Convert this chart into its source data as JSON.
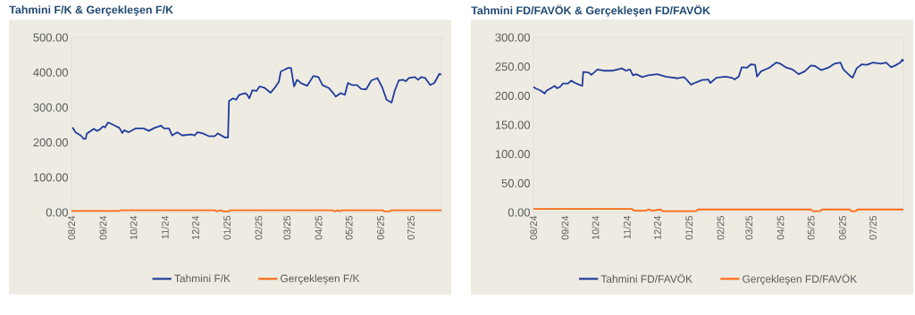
{
  "chart_data": [
    {
      "type": "line",
      "title": "Tahmini F/K & Gerçekleşen F/K",
      "legend": "bottom",
      "xlim": [
        "2024-08-01",
        "2025-07-31"
      ],
      "xticks": [
        {
          "value": "2024-08-01",
          "label": "08/24"
        },
        {
          "value": "2024-09-01",
          "label": "09/24"
        },
        {
          "value": "2024-10-01",
          "label": "10/24"
        },
        {
          "value": "2024-11-01",
          "label": "11/24"
        },
        {
          "value": "2024-12-01",
          "label": "12/24"
        },
        {
          "value": "2025-01-01",
          "label": "01/25"
        },
        {
          "value": "2025-02-01",
          "label": "02/25"
        },
        {
          "value": "2025-03-01",
          "label": "03/25"
        },
        {
          "value": "2025-04-01",
          "label": "04/25"
        },
        {
          "value": "2025-05-01",
          "label": "05/25"
        },
        {
          "value": "2025-06-01",
          "label": "06/25"
        },
        {
          "value": "2025-07-01",
          "label": "07/25"
        }
      ],
      "ylim": [
        0,
        500
      ],
      "yticks": [
        {
          "value": 0,
          "label": "0.00"
        },
        {
          "value": 100,
          "label": "100.00"
        },
        {
          "value": 200,
          "label": "200.00"
        },
        {
          "value": 300,
          "label": "300.00"
        },
        {
          "value": 400,
          "label": "400.00"
        },
        {
          "value": 500,
          "label": "500.00"
        }
      ],
      "series": [
        {
          "name": "Tahmini F/K",
          "color": "#1f3c9c",
          "x": [
            "2024-08-02",
            "2024-08-05",
            "2024-08-10",
            "2024-08-13",
            "2024-08-15",
            "2024-08-16",
            "2024-08-20",
            "2024-08-23",
            "2024-08-26",
            "2024-08-29",
            "2024-09-01",
            "2024-09-03",
            "2024-09-06",
            "2024-09-10",
            "2024-09-14",
            "2024-09-17",
            "2024-09-20",
            "2024-09-22",
            "2024-09-26",
            "2024-10-03",
            "2024-10-11",
            "2024-10-16",
            "2024-10-22",
            "2024-10-28",
            "2024-10-31",
            "2024-11-05",
            "2024-11-08",
            "2024-11-13",
            "2024-11-18",
            "2024-11-27",
            "2024-11-30",
            "2024-12-03",
            "2024-12-08",
            "2024-12-14",
            "2024-12-20",
            "2024-12-23",
            "2024-12-30",
            "2025-01-02",
            "2025-01-03",
            "2025-01-07",
            "2025-01-10",
            "2025-01-13",
            "2025-01-19",
            "2025-01-21",
            "2025-01-23",
            "2025-01-26",
            "2025-01-30",
            "2025-02-02",
            "2025-02-07",
            "2025-02-13",
            "2025-02-17",
            "2025-02-21",
            "2025-02-23",
            "2025-02-26",
            "2025-03-02",
            "2025-03-05",
            "2025-03-08",
            "2025-03-11",
            "2025-03-15",
            "2025-03-21",
            "2025-03-27",
            "2025-04-01",
            "2025-04-05",
            "2025-04-11",
            "2025-04-15",
            "2025-04-18",
            "2025-04-23",
            "2025-04-27",
            "2025-04-30",
            "2025-05-04",
            "2025-05-09",
            "2025-05-13",
            "2025-05-18",
            "2025-05-23",
            "2025-05-29",
            "2025-06-03",
            "2025-06-07",
            "2025-06-12",
            "2025-06-15",
            "2025-06-19",
            "2025-06-23",
            "2025-06-26",
            "2025-06-29",
            "2025-07-05",
            "2025-07-08",
            "2025-07-11",
            "2025-07-15",
            "2025-07-20",
            "2025-07-24",
            "2025-07-29",
            "2025-07-31"
          ],
          "values": [
            243,
            229,
            220,
            210,
            210,
            225,
            233,
            239,
            233,
            237,
            246,
            243,
            257,
            252,
            246,
            242,
            227,
            235,
            229,
            240,
            240,
            233,
            242,
            248,
            240,
            240,
            220,
            229,
            220,
            223,
            220,
            229,
            226,
            218,
            218,
            226,
            214,
            214,
            318,
            326,
            322,
            336,
            341,
            336,
            326,
            349,
            347,
            360,
            356,
            342,
            356,
            373,
            403,
            407,
            413,
            413,
            360,
            379,
            369,
            362,
            390,
            387,
            364,
            356,
            343,
            331,
            341,
            336,
            370,
            364,
            364,
            353,
            352,
            377,
            384,
            356,
            322,
            314,
            347,
            377,
            379,
            375,
            384,
            387,
            379,
            387,
            384,
            364,
            370,
            396,
            394
          ]
        },
        {
          "name": "Gerçekleşen F/K",
          "color": "#ff6a13",
          "x": [
            "2024-08-01",
            "2024-09-17",
            "2024-09-18",
            "2024-12-20",
            "2024-12-22",
            "2024-12-26",
            "2024-12-28",
            "2025-01-03",
            "2025-01-04",
            "2025-04-15",
            "2025-04-17",
            "2025-04-20",
            "2025-04-22",
            "2025-04-24",
            "2025-06-03",
            "2025-06-05",
            "2025-06-10",
            "2025-06-12",
            "2025-07-31"
          ],
          "values": [
            4,
            4,
            6,
            6,
            3,
            6,
            3,
            3,
            6,
            6,
            3,
            6,
            3,
            6,
            6,
            3,
            3,
            6,
            6
          ]
        }
      ]
    },
    {
      "type": "line",
      "title": "Tahmini FD/FAVÖK & Gerçekleşen FD/FAVÖK",
      "legend": "bottom",
      "xlim": [
        "2024-08-01",
        "2025-07-31"
      ],
      "xticks": [
        {
          "value": "2024-08-01",
          "label": "08/24"
        },
        {
          "value": "2024-09-01",
          "label": "09/24"
        },
        {
          "value": "2024-10-01",
          "label": "10/24"
        },
        {
          "value": "2024-11-01",
          "label": "11/24"
        },
        {
          "value": "2024-12-01",
          "label": "12/24"
        },
        {
          "value": "2025-01-01",
          "label": "01/25"
        },
        {
          "value": "2025-02-01",
          "label": "02/25"
        },
        {
          "value": "2025-03-01",
          "label": "03/25"
        },
        {
          "value": "2025-04-01",
          "label": "04/25"
        },
        {
          "value": "2025-05-01",
          "label": "05/25"
        },
        {
          "value": "2025-06-01",
          "label": "06/25"
        },
        {
          "value": "2025-07-01",
          "label": "07/25"
        }
      ],
      "ylim": [
        0,
        300
      ],
      "yticks": [
        {
          "value": 0,
          "label": "0.00"
        },
        {
          "value": 50,
          "label": "50.00"
        },
        {
          "value": 100,
          "label": "100.00"
        },
        {
          "value": 150,
          "label": "150.00"
        },
        {
          "value": 200,
          "label": "200.00"
        },
        {
          "value": 250,
          "label": "250.00"
        },
        {
          "value": 300,
          "label": "300.00"
        }
      ],
      "series": [
        {
          "name": "Tahmini FD/FAVÖK",
          "color": "#1f3c9c",
          "x": [
            "2024-08-01",
            "2024-08-04",
            "2024-08-08",
            "2024-08-12",
            "2024-08-14",
            "2024-08-19",
            "2024-08-22",
            "2024-08-24",
            "2024-08-27",
            "2024-08-30",
            "2024-09-04",
            "2024-09-07",
            "2024-09-11",
            "2024-09-15",
            "2024-09-18",
            "2024-09-19",
            "2024-09-24",
            "2024-09-27",
            "2024-10-03",
            "2024-10-09",
            "2024-10-18",
            "2024-10-27",
            "2024-10-31",
            "2024-11-04",
            "2024-11-07",
            "2024-11-10",
            "2024-11-16",
            "2024-11-22",
            "2024-12-01",
            "2024-12-09",
            "2024-12-21",
            "2024-12-27",
            "2024-12-30",
            "2025-01-03",
            "2025-01-08",
            "2025-01-14",
            "2025-01-20",
            "2025-01-22",
            "2025-01-28",
            "2025-02-06",
            "2025-02-12",
            "2025-02-15",
            "2025-02-19",
            "2025-02-22",
            "2025-02-27",
            "2025-03-03",
            "2025-03-07",
            "2025-03-09",
            "2025-03-13",
            "2025-03-21",
            "2025-03-28",
            "2025-04-01",
            "2025-04-06",
            "2025-04-13",
            "2025-04-19",
            "2025-04-25",
            "2025-05-01",
            "2025-05-05",
            "2025-05-11",
            "2025-05-18",
            "2025-05-24",
            "2025-05-30",
            "2025-06-02",
            "2025-06-08",
            "2025-06-11",
            "2025-06-15",
            "2025-06-20",
            "2025-06-25",
            "2025-07-01",
            "2025-07-09",
            "2025-07-14",
            "2025-07-19",
            "2025-07-23",
            "2025-07-28",
            "2025-07-30",
            "2025-07-31"
          ],
          "values": [
            215,
            212,
            209,
            204,
            209,
            214,
            217,
            213,
            215,
            221,
            221,
            226,
            222,
            219,
            217,
            241,
            240,
            236,
            245,
            243,
            243,
            247,
            243,
            245,
            235,
            237,
            232,
            235,
            237,
            233,
            230,
            232,
            227,
            219,
            223,
            227,
            228,
            222,
            231,
            233,
            231,
            228,
            233,
            249,
            248,
            254,
            253,
            233,
            242,
            248,
            257,
            255,
            249,
            245,
            237,
            242,
            252,
            251,
            244,
            248,
            255,
            257,
            245,
            235,
            231,
            247,
            254,
            253,
            257,
            255,
            257,
            249,
            252,
            257,
            262,
            259
          ]
        },
        {
          "name": "Gerçekleşen FD/FAVÖK",
          "color": "#ff6a13",
          "x": [
            "2024-08-01",
            "2024-11-06",
            "2024-11-08",
            "2024-11-20",
            "2024-11-22",
            "2024-11-26",
            "2024-12-04",
            "2024-12-06",
            "2025-01-08",
            "2025-01-10",
            "2025-05-01",
            "2025-05-03",
            "2025-05-10",
            "2025-05-12",
            "2025-06-08",
            "2025-06-10",
            "2025-06-14",
            "2025-06-16",
            "2025-07-31"
          ],
          "values": [
            6,
            6,
            3,
            3,
            5,
            3,
            5,
            2,
            2,
            5,
            5,
            2,
            2,
            5,
            5,
            2,
            2,
            5,
            5
          ]
        }
      ]
    }
  ]
}
